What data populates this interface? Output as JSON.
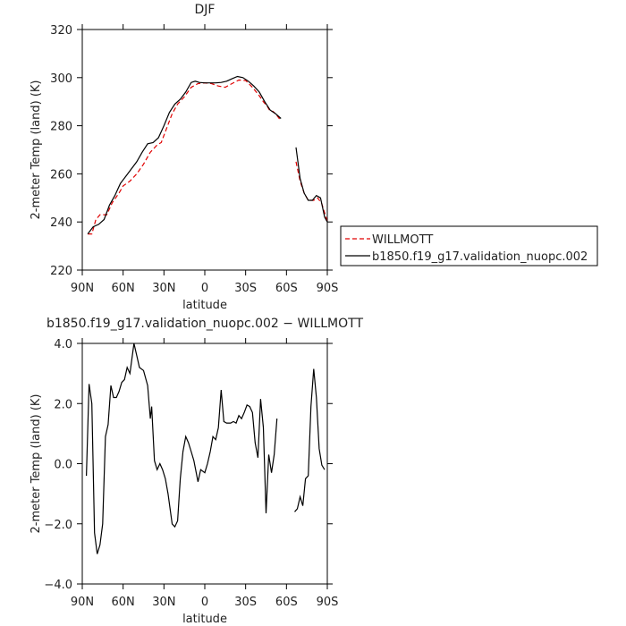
{
  "chart_data": [
    {
      "type": "line",
      "title": "DJF",
      "xlabel": "latitude",
      "ylabel": "2-meter Temp (land) (K)",
      "xlim": [
        90,
        -90
      ],
      "ylim": [
        220,
        320
      ],
      "xticks": [
        90,
        60,
        30,
        0,
        -30,
        -60,
        -90
      ],
      "xtick_labels": [
        "90N",
        "60N",
        "30N",
        "0",
        "30S",
        "60S",
        "90S"
      ],
      "yticks": [
        220,
        240,
        260,
        280,
        300,
        320
      ],
      "ytick_labels": [
        "220",
        "240",
        "260",
        "280",
        "300",
        "320"
      ],
      "legend": "outside-right",
      "series": [
        {
          "name": "WILLMOTT",
          "color": "#e00000",
          "dash": true,
          "segments": [
            [
              [
                86,
                235
              ],
              [
                83,
                235
              ],
              [
                80,
                241
              ],
              [
                77,
                243
              ],
              [
                72,
                243
              ],
              [
                68,
                248
              ],
              [
                63,
                252
              ],
              [
                60,
                255
              ],
              [
                55,
                257
              ],
              [
                50,
                260
              ],
              [
                45,
                264
              ],
              [
                40,
                269
              ],
              [
                35,
                272
              ],
              [
                32,
                273
              ],
              [
                28,
                279
              ],
              [
                24,
                285
              ],
              [
                20,
                289
              ],
              [
                15,
                292
              ],
              [
                10,
                296
              ],
              [
                5,
                297.5
              ],
              [
                0,
                297.8
              ],
              [
                -5,
                297.5
              ],
              [
                -10,
                296.5
              ],
              [
                -15,
                296
              ],
              [
                -20,
                297.5
              ],
              [
                -25,
                299
              ],
              [
                -30,
                298.8
              ],
              [
                -35,
                296
              ],
              [
                -40,
                292.5
              ],
              [
                -43,
                290
              ],
              [
                -46,
                288
              ],
              [
                -48,
                286
              ],
              [
                -50,
                286
              ],
              [
                -52,
                285
              ],
              [
                -56,
                282
              ]
            ],
            [
              [
                -67,
                265
              ],
              [
                -70,
                257
              ],
              [
                -73,
                252
              ],
              [
                -76,
                249
              ],
              [
                -80,
                249
              ],
              [
                -83,
                250
              ],
              [
                -86,
                247.5
              ],
              [
                -89,
                242
              ],
              [
                -90,
                240
              ]
            ]
          ]
        },
        {
          "name": "b1850.f19_g17.validation_nuopc.002",
          "color": "#000000",
          "dash": false,
          "segments": [
            [
              [
                86,
                235
              ],
              [
                82,
                238
              ],
              [
                78,
                239
              ],
              [
                74,
                241
              ],
              [
                70,
                247
              ],
              [
                66,
                251
              ],
              [
                62,
                256
              ],
              [
                58,
                259
              ],
              [
                54,
                262
              ],
              [
                50,
                265
              ],
              [
                46,
                269
              ],
              [
                42,
                272.5
              ],
              [
                38,
                273
              ],
              [
                34,
                275
              ],
              [
                30,
                280
              ],
              [
                26,
                285.5
              ],
              [
                22,
                289
              ],
              [
                18,
                291
              ],
              [
                14,
                294
              ],
              [
                10,
                298
              ],
              [
                7,
                298.5
              ],
              [
                4,
                298
              ],
              [
                0,
                297.8
              ],
              [
                -4,
                297.8
              ],
              [
                -8,
                297.8
              ],
              [
                -12,
                298
              ],
              [
                -16,
                298.5
              ],
              [
                -20,
                299.5
              ],
              [
                -24,
                300.5
              ],
              [
                -28,
                300
              ],
              [
                -32,
                298.5
              ],
              [
                -36,
                296.5
              ],
              [
                -40,
                294
              ],
              [
                -44,
                290
              ],
              [
                -48,
                286.5
              ],
              [
                -52,
                285
              ],
              [
                -56,
                283
              ]
            ],
            [
              [
                -67,
                271
              ],
              [
                -70,
                258
              ],
              [
                -73,
                252
              ],
              [
                -76,
                249
              ],
              [
                -79,
                249
              ],
              [
                -82,
                251
              ],
              [
                -85,
                250
              ],
              [
                -88,
                242
              ],
              [
                -90,
                240
              ]
            ]
          ]
        }
      ]
    },
    {
      "type": "line",
      "title": "b1850.f19_g17.validation_nuopc.002  −  WILLMOTT",
      "xlabel": "latitude",
      "ylabel": "2-meter Temp (land) (K)",
      "xlim": [
        90,
        -90
      ],
      "ylim": [
        -4,
        4
      ],
      "xticks": [
        90,
        60,
        30,
        0,
        -30,
        -60,
        -90
      ],
      "xtick_labels": [
        "90N",
        "60N",
        "30N",
        "0",
        "30S",
        "60S",
        "90S"
      ],
      "yticks": [
        -4,
        -2,
        0,
        2,
        4
      ],
      "ytick_labels": [
        "−4.0",
        "−2.0",
        "0.0",
        "2.0",
        "4.0"
      ],
      "series": [
        {
          "color": "#000000",
          "segments": [
            [
              [
                87,
                -0.4
              ],
              [
                85,
                2.65
              ],
              [
                83,
                2.0
              ],
              [
                81,
                -2.3
              ],
              [
                79,
                -3.0
              ],
              [
                77,
                -2.7
              ],
              [
                75,
                -2.0
              ],
              [
                73,
                0.9
              ],
              [
                71,
                1.3
              ],
              [
                69,
                2.6
              ],
              [
                67,
                2.2
              ],
              [
                65,
                2.2
              ],
              [
                63,
                2.4
              ],
              [
                61,
                2.7
              ],
              [
                59,
                2.8
              ],
              [
                57,
                3.2
              ],
              [
                55,
                3.0
              ],
              [
                52,
                4.0
              ],
              [
                50,
                3.6
              ],
              [
                48,
                3.2
              ],
              [
                45,
                3.1
              ],
              [
                42,
                2.6
              ],
              [
                40,
                1.5
              ],
              [
                39,
                1.9
              ],
              [
                37,
                0.1
              ],
              [
                35,
                -0.2
              ],
              [
                33,
                0.0
              ],
              [
                31,
                -0.2
              ],
              [
                29,
                -0.5
              ],
              [
                27,
                -1.0
              ],
              [
                24,
                -2.0
              ],
              [
                22,
                -2.1
              ],
              [
                20,
                -1.9
              ],
              [
                18,
                -0.5
              ],
              [
                16,
                0.4
              ],
              [
                14,
                0.9
              ],
              [
                12,
                0.7
              ],
              [
                10,
                0.4
              ],
              [
                8,
                0.1
              ],
              [
                5,
                -0.6
              ],
              [
                3,
                -0.2
              ],
              [
                0,
                -0.3
              ],
              [
                -2,
                0.0
              ],
              [
                -4,
                0.4
              ],
              [
                -6,
                0.9
              ],
              [
                -8,
                0.8
              ],
              [
                -10,
                1.2
              ],
              [
                -12,
                2.45
              ],
              [
                -14,
                1.4
              ],
              [
                -16,
                1.35
              ],
              [
                -19,
                1.35
              ],
              [
                -21,
                1.4
              ],
              [
                -23,
                1.35
              ],
              [
                -25,
                1.6
              ],
              [
                -27,
                1.5
              ],
              [
                -29,
                1.7
              ],
              [
                -31,
                1.95
              ],
              [
                -33,
                1.9
              ],
              [
                -35,
                1.7
              ],
              [
                -37,
                0.7
              ],
              [
                -39,
                0.2
              ],
              [
                -41,
                2.15
              ],
              [
                -43,
                1.2
              ],
              [
                -45,
                -1.65
              ],
              [
                -47,
                0.3
              ],
              [
                -49,
                -0.3
              ],
              [
                -51,
                0.3
              ],
              [
                -53,
                1.5
              ]
            ],
            [
              [
                -66,
                -1.6
              ],
              [
                -68,
                -1.5
              ],
              [
                -70,
                -1.1
              ],
              [
                -72,
                -1.4
              ],
              [
                -74,
                -0.5
              ],
              [
                -76,
                -0.4
              ],
              [
                -78,
                1.9
              ],
              [
                -80,
                3.15
              ],
              [
                -82,
                2.2
              ],
              [
                -84,
                0.5
              ],
              [
                -86,
                -0.05
              ],
              [
                -88,
                -0.2
              ]
            ]
          ]
        }
      ]
    }
  ]
}
